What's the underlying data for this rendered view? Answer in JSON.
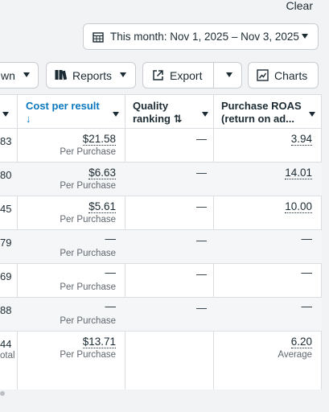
{
  "header": {
    "clear_label": "Clear"
  },
  "date_range": {
    "label": "This month: Nov 1, 2025 – Nov 3, 2025"
  },
  "toolbar": {
    "breakdown_label": "wn",
    "reports_label": "Reports",
    "export_label": "Export",
    "charts_label": "Charts"
  },
  "table": {
    "columns": {
      "cost_per_result": {
        "line1": "Cost per result",
        "line2": "↓"
      },
      "quality_ranking": {
        "line1": "Quality",
        "line2": "ranking ⇅"
      },
      "purchase_roas": {
        "line1": "Purchase ROAS",
        "line2": "(return on ad..."
      }
    },
    "rows": [
      {
        "left": "83",
        "left_sub": "",
        "cost": "$21.58",
        "cost_sub": "Per Purchase",
        "quality": "—",
        "roas": "3.94",
        "roas_sub": ""
      },
      {
        "left": "80",
        "left_sub": "",
        "cost": "$6.63",
        "cost_sub": "Per Purchase",
        "quality": "—",
        "roas": "14.01",
        "roas_sub": ""
      },
      {
        "left": "45",
        "left_sub": "",
        "cost": "$5.61",
        "cost_sub": "Per Purchase",
        "quality": "—",
        "roas": "10.00",
        "roas_sub": ""
      },
      {
        "left": "79",
        "left_sub": "",
        "cost": "—",
        "cost_sub": "Per Purchase",
        "quality": "—",
        "roas": "—",
        "roas_sub": ""
      },
      {
        "left": "69",
        "left_sub": "",
        "cost": "—",
        "cost_sub": "Per Purchase",
        "quality": "—",
        "roas": "—",
        "roas_sub": ""
      },
      {
        "left": "88",
        "left_sub": "",
        "cost": "—",
        "cost_sub": "Per Purchase",
        "quality": "—",
        "roas": "—",
        "roas_sub": ""
      }
    ],
    "total": {
      "left": "44",
      "left_sub": "otal",
      "cost": "$13.71",
      "cost_sub": "Per Purchase",
      "roas": "6.20",
      "roas_sub": "Average"
    }
  },
  "colors": {
    "accent": "#0a78be",
    "border": "#dadde1",
    "row_alt": "#f5f6f7"
  }
}
